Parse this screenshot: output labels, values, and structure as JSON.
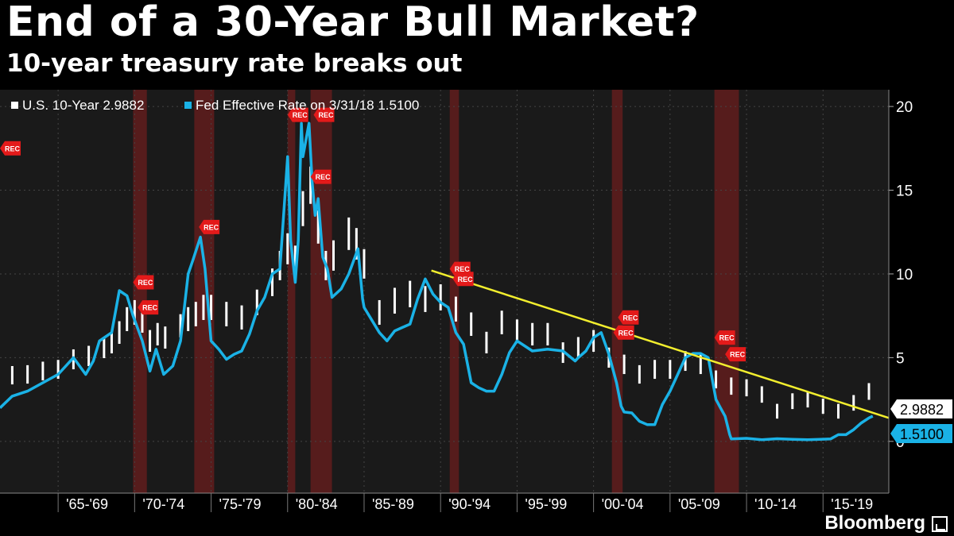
{
  "header": {
    "title": "End of a 30-Year Bull Market?",
    "subtitle": "10-year treasury rate breaks out"
  },
  "brand": {
    "name": "Bloomberg"
  },
  "colors": {
    "background": "#000000",
    "plot_background": "#1a1a1a",
    "treasury": "#ffffff",
    "fed": "#1ab2e6",
    "trendline": "#f2ee2e",
    "recession_band": "#5a1c1c",
    "recession_tag": "#e31a1a"
  },
  "recession_tag_label": "REC",
  "chart_data": {
    "type": "line",
    "title": "End of a 30-Year Bull Market?",
    "subtitle": "10-year treasury rate breaks out",
    "x_tick_labels": [
      "'65-'69",
      "'70-'74",
      "'75-'79",
      "'80-'84",
      "'85-'89",
      "'90-'94",
      "'95-'99",
      "'00-'04",
      "'05-'09",
      "'10-'14",
      "'15-'19"
    ],
    "x_tick_starts": [
      1965,
      1970,
      1975,
      1980,
      1985,
      1990,
      1995,
      2000,
      2005,
      2010,
      2015
    ],
    "xlim": [
      1961.2,
      2019.3
    ],
    "ylim": [
      -2,
      21
    ],
    "y_ticks": [
      0,
      5,
      10,
      15,
      20
    ],
    "grid": true,
    "legend_position": "top-left",
    "recessions": [
      [
        1969.9,
        1970.8
      ],
      [
        1973.9,
        1975.2
      ],
      [
        1980.0,
        1980.5
      ],
      [
        1981.5,
        1982.9
      ],
      [
        1990.6,
        1991.2
      ],
      [
        2001.2,
        2001.9
      ],
      [
        2007.9,
        2009.5
      ]
    ],
    "series": [
      {
        "name": "U.S. 10-Year 2.9882",
        "legend_label": "U.S. 10-Year 2.9882",
        "last_value": "2.9882",
        "style": "bars",
        "x": [
          1962,
          1963,
          1964,
          1965,
          1966,
          1967,
          1968,
          1968.5,
          1969,
          1969.5,
          1970,
          1970.5,
          1971,
          1971.5,
          1972,
          1973,
          1973.5,
          1974,
          1974.5,
          1975,
          1976,
          1977,
          1978,
          1979,
          1979.5,
          1980,
          1980.5,
          1981,
          1981.5,
          1982,
          1982.5,
          1983,
          1984,
          1984.5,
          1985,
          1986,
          1987,
          1988,
          1989,
          1990,
          1991,
          1992,
          1993,
          1994,
          1995,
          1996,
          1997,
          1998,
          1999,
          2000,
          2001,
          2002,
          2003,
          2004,
          2005,
          2006,
          2007,
          2008,
          2009,
          2010,
          2011,
          2012,
          2013,
          2014,
          2015,
          2016,
          2017,
          2018
        ],
        "y": [
          3.95,
          4.0,
          4.2,
          4.3,
          4.9,
          5.1,
          5.6,
          5.9,
          6.5,
          7.3,
          7.7,
          7.2,
          6.0,
          6.4,
          6.2,
          6.9,
          7.3,
          7.6,
          8.0,
          8.0,
          7.6,
          7.4,
          8.3,
          9.5,
          10.5,
          11.5,
          10.8,
          13.9,
          15.3,
          12.8,
          10.5,
          11.1,
          12.4,
          11.8,
          10.6,
          7.7,
          8.4,
          8.8,
          8.5,
          8.6,
          7.9,
          7.0,
          5.9,
          7.1,
          6.6,
          6.4,
          6.4,
          5.3,
          5.6,
          6.0,
          5.0,
          4.6,
          4.0,
          4.3,
          4.3,
          4.8,
          4.6,
          3.7,
          3.3,
          3.2,
          2.8,
          1.8,
          2.4,
          2.5,
          2.1,
          1.8,
          2.3,
          2.98
        ]
      },
      {
        "name": "Fed Effective Rate on 3/31/18 1.5100",
        "legend_label": "Fed Effective Rate on 3/31/18 1.5100",
        "last_value": "1.5100",
        "style": "line",
        "x": [
          1961.2,
          1962,
          1963,
          1964,
          1965,
          1966,
          1966.8,
          1967.3,
          1967.7,
          1968.5,
          1969,
          1969.5,
          1969.9,
          1970.5,
          1971,
          1971.4,
          1971.9,
          1972.5,
          1973,
          1973.5,
          1973.8,
          1974.3,
          1974.6,
          1975,
          1975.5,
          1976,
          1976.5,
          1977,
          1977.5,
          1978,
          1978.5,
          1979,
          1979.5,
          1980,
          1980.2,
          1980.5,
          1980.7,
          1980.9,
          1981,
          1981.4,
          1981.6,
          1981.8,
          1982,
          1982.3,
          1982.6,
          1982.9,
          1983.5,
          1984,
          1984.6,
          1984.9,
          1985,
          1986,
          1986.5,
          1987,
          1987.5,
          1988,
          1988.5,
          1989,
          1989.5,
          1990,
          1990.5,
          1991,
          1991.5,
          1992,
          1992.5,
          1993,
          1993.5,
          1994,
          1994.5,
          1995,
          1995.5,
          1996,
          1997,
          1998,
          1998.8,
          1999,
          1999.5,
          2000,
          2000.5,
          2001,
          2001.5,
          2001.8,
          2002,
          2002.5,
          2003,
          2003.5,
          2004,
          2004.5,
          2005,
          2005.5,
          2006,
          2006.5,
          2007,
          2007.5,
          2008,
          2008.3,
          2008.6,
          2008.9,
          2009,
          2010,
          2011,
          2012,
          2013,
          2014,
          2015,
          2015.5,
          2016,
          2016.5,
          2017,
          2017.5,
          2018,
          2018.25
        ],
        "y": [
          2.0,
          2.7,
          3.0,
          3.5,
          4.0,
          5.0,
          4.0,
          4.8,
          6.0,
          6.5,
          9.0,
          8.7,
          7.5,
          6.0,
          4.2,
          5.5,
          4.0,
          4.5,
          6.0,
          10.0,
          10.8,
          12.2,
          10.3,
          6.0,
          5.5,
          4.9,
          5.2,
          5.4,
          6.4,
          7.8,
          8.6,
          10.0,
          10.3,
          17.0,
          12.0,
          9.5,
          12.0,
          19.0,
          17.0,
          19.0,
          15.5,
          13.5,
          14.5,
          11.0,
          10.3,
          8.6,
          9.1,
          10.0,
          11.5,
          8.5,
          8.0,
          6.5,
          6.0,
          6.6,
          6.8,
          7.0,
          8.5,
          9.7,
          8.8,
          8.3,
          8.0,
          6.5,
          5.8,
          3.5,
          3.2,
          3.0,
          3.0,
          4.0,
          5.3,
          6.0,
          5.7,
          5.4,
          5.5,
          5.4,
          4.8,
          5.0,
          5.4,
          6.2,
          6.5,
          5.2,
          3.5,
          2.1,
          1.75,
          1.7,
          1.2,
          1.0,
          1.0,
          2.2,
          3.0,
          4.0,
          5.0,
          5.25,
          5.25,
          5.0,
          2.5,
          2.0,
          1.5,
          0.4,
          0.15,
          0.18,
          0.1,
          0.16,
          0.12,
          0.1,
          0.13,
          0.15,
          0.4,
          0.4,
          0.7,
          1.1,
          1.4,
          1.51
        ]
      },
      {
        "name": "",
        "style": "trendline",
        "x": [
          1989.4,
          2019.3
        ],
        "y": [
          10.2,
          1.4
        ]
      }
    ]
  }
}
